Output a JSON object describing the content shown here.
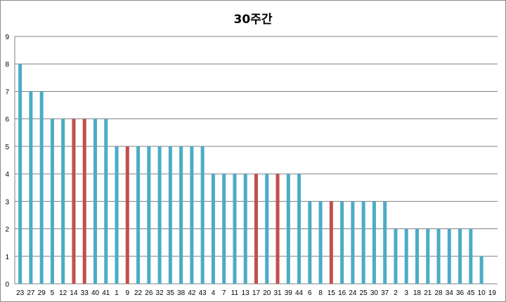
{
  "chart_data": {
    "type": "bar",
    "title": "30주간",
    "xlabel": "",
    "ylabel": "",
    "ylim": [
      0,
      9
    ],
    "yticks": [
      0,
      1,
      2,
      3,
      4,
      5,
      6,
      7,
      8,
      9
    ],
    "grid": "horizontal",
    "legend": "none",
    "colors": {
      "default": "#4bacc6",
      "highlight": "#c0504d",
      "gridline": "#808080"
    },
    "categories": [
      "23",
      "27",
      "29",
      "5",
      "12",
      "14",
      "33",
      "40",
      "41",
      "1",
      "9",
      "22",
      "26",
      "32",
      "35",
      "38",
      "42",
      "43",
      "4",
      "7",
      "11",
      "13",
      "17",
      "20",
      "31",
      "39",
      "44",
      "6",
      "8",
      "15",
      "16",
      "24",
      "25",
      "30",
      "37",
      "2",
      "3",
      "18",
      "21",
      "28",
      "34",
      "36",
      "45",
      "10",
      "19"
    ],
    "values": [
      8,
      7,
      7,
      6,
      6,
      6,
      6,
      6,
      6,
      5,
      5,
      5,
      5,
      5,
      5,
      5,
      5,
      5,
      4,
      4,
      4,
      4,
      4,
      4,
      4,
      4,
      4,
      3,
      3,
      3,
      3,
      3,
      3,
      3,
      3,
      2,
      2,
      2,
      2,
      2,
      2,
      2,
      2,
      1,
      0
    ],
    "highlighted": [
      "14",
      "33",
      "9",
      "17",
      "31",
      "15"
    ]
  }
}
